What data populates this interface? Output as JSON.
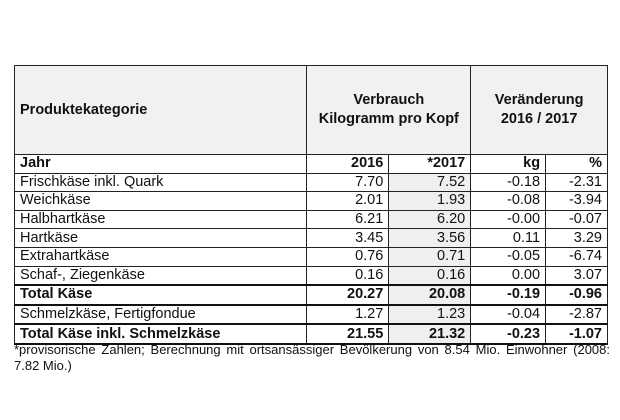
{
  "header": {
    "category": "Produktekategorie",
    "consumption_line1": "Verbrauch",
    "consumption_line2": "Kilogramm pro Kopf",
    "change_line1": "Veränderung",
    "change_line2": "2016 / 2017"
  },
  "subheader": {
    "label": "Jahr",
    "y2016": "2016",
    "y2017": "*2017",
    "kg": "kg",
    "pct": "%"
  },
  "rows": [
    {
      "name": "Frischkäse inkl. Quark",
      "v2016": "7.70",
      "v2017": "7.52",
      "kg": "-0.18",
      "pct": "-2.31"
    },
    {
      "name": "Weichkäse",
      "v2016": "2.01",
      "v2017": "1.93",
      "kg": "-0.08",
      "pct": "-3.94"
    },
    {
      "name": "Halbhartkäse",
      "v2016": "6.21",
      "v2017": "6.20",
      "kg": "-0.00",
      "pct": "-0.07"
    },
    {
      "name": "Hartkäse",
      "v2016": "3.45",
      "v2017": "3.56",
      "kg": "0.11",
      "pct": "3.29"
    },
    {
      "name": "Extrahartkäse",
      "v2016": "0.76",
      "v2017": "0.71",
      "kg": "-0.05",
      "pct": "-6.74"
    },
    {
      "name": "Schaf-, Ziegenkäse",
      "v2016": "0.16",
      "v2017": "0.16",
      "kg": "0.00",
      "pct": "3.07"
    },
    {
      "name": "Total Käse",
      "v2016": "20.27",
      "v2017": "20.08",
      "kg": "-0.19",
      "pct": "-0.96"
    },
    {
      "name": "Schmelzkäse, Fertigfondue",
      "v2016": "1.27",
      "v2017": "1.23",
      "kg": "-0.04",
      "pct": "-2.87"
    },
    {
      "name": "Total Käse inkl. Schmelzkäse",
      "v2016": "21.55",
      "v2017": "21.32",
      "kg": "-0.23",
      "pct": "-1.07"
    }
  ],
  "footnote": "*provisorische Zahlen; Berechnung mit ortsansässiger Bevölkerung von 8.54 Mio. Einwohner (2008: 7.82 Mio.)"
}
